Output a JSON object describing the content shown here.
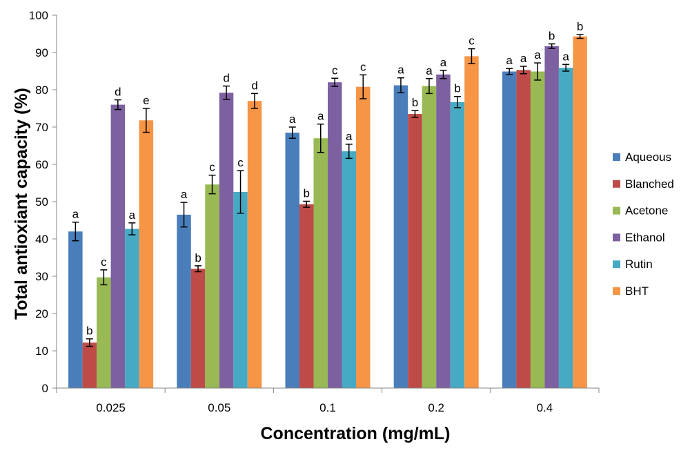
{
  "chart_data": {
    "type": "bar",
    "xlabel": "Concentration (mg/mL)",
    "ylabel": "Total antioxiant capacity (%)",
    "ylim": [
      0,
      100
    ],
    "yticks": [
      "0",
      "10",
      "20",
      "30",
      "40",
      "50",
      "60",
      "70",
      "80",
      "90",
      "100"
    ],
    "categories": [
      "0.025",
      "0.05",
      "0.1",
      "0.2",
      "0.4"
    ],
    "grid": false,
    "legend_position": "right",
    "series": [
      {
        "name": "Aqueous",
        "color": "#4a7ebb",
        "values": [
          42.0,
          46.5,
          68.5,
          81.2,
          84.9
        ],
        "errors": [
          2.5,
          3.3,
          1.5,
          2.0,
          0.8
        ],
        "labels": [
          "a",
          "a",
          "a",
          "a",
          "a"
        ]
      },
      {
        "name": "Blanched",
        "color": "#be4b48",
        "values": [
          12.2,
          32.0,
          49.3,
          73.5,
          85.3
        ],
        "errors": [
          1.0,
          0.8,
          0.8,
          0.9,
          1.0
        ],
        "labels": [
          "b",
          "b",
          "b",
          "b",
          "a"
        ]
      },
      {
        "name": "Acetone",
        "color": "#98b954",
        "values": [
          29.7,
          54.6,
          67.0,
          81.0,
          84.9
        ],
        "errors": [
          2.0,
          2.5,
          3.8,
          2.0,
          2.3
        ],
        "labels": [
          "c",
          "c",
          "a",
          "a",
          "a"
        ]
      },
      {
        "name": "Ethanol",
        "color": "#7d60a0",
        "values": [
          76.0,
          79.2,
          82.0,
          84.1,
          91.7
        ],
        "errors": [
          1.3,
          1.8,
          1.1,
          1.1,
          0.6
        ],
        "labels": [
          "d",
          "d",
          "c",
          "a",
          "b"
        ]
      },
      {
        "name": "Rutin",
        "color": "#46aac5",
        "values": [
          42.7,
          52.6,
          63.5,
          76.7,
          85.9
        ],
        "errors": [
          1.6,
          5.7,
          1.9,
          1.5,
          0.9
        ],
        "labels": [
          "a",
          "c",
          "a",
          "b",
          "a"
        ]
      },
      {
        "name": "BHT",
        "color": "#f69545",
        "values": [
          71.8,
          77.0,
          80.8,
          89.0,
          94.3
        ],
        "errors": [
          3.2,
          2.0,
          3.2,
          2.0,
          0.5
        ],
        "labels": [
          "e",
          "d",
          "c",
          "c",
          "b"
        ]
      }
    ]
  }
}
